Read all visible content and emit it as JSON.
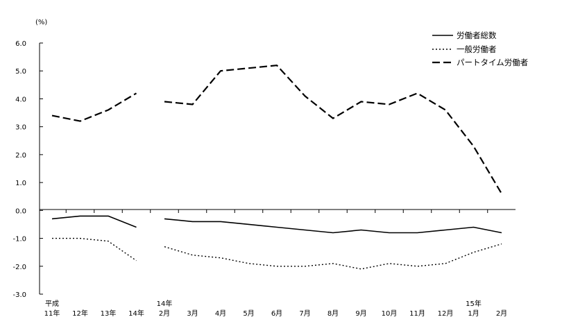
{
  "chart_data": {
    "type": "line",
    "unit_label": "(%)",
    "ylim": [
      -3.0,
      6.0
    ],
    "y_ticks": [
      "6.0",
      "5.0",
      "4.0",
      "3.0",
      "2.0",
      "1.0",
      "0.0",
      "-1.0",
      "-2.0",
      "-3.0"
    ],
    "grid": false,
    "legend_position": "top-right",
    "x_labels": [
      [
        "平成",
        "11年"
      ],
      [
        "12年"
      ],
      [
        "13年"
      ],
      [
        "14年"
      ],
      [
        "14年",
        "2月"
      ],
      [
        "3月"
      ],
      [
        "4月"
      ],
      [
        "5月"
      ],
      [
        "6月"
      ],
      [
        "7月"
      ],
      [
        "8月"
      ],
      [
        "9月"
      ],
      [
        "10月"
      ],
      [
        "11月"
      ],
      [
        "12月"
      ],
      [
        "15年",
        "1月"
      ],
      [
        "2月"
      ]
    ],
    "series": [
      {
        "name": "労働者総数",
        "style": "solid",
        "values": [
          -0.3,
          -0.2,
          -0.2,
          -0.6,
          -0.3,
          -0.4,
          -0.4,
          -0.5,
          -0.6,
          -0.7,
          -0.8,
          -0.7,
          -0.8,
          -0.8,
          -0.7,
          -0.6,
          -0.8
        ]
      },
      {
        "name": "一般労働者",
        "style": "dotted",
        "values": [
          -1.0,
          -1.0,
          -1.1,
          -1.8,
          -1.3,
          -1.6,
          -1.7,
          -1.9,
          -2.0,
          -2.0,
          -1.9,
          -2.1,
          -1.9,
          -2.0,
          -1.9,
          -1.5,
          -1.2
        ]
      },
      {
        "name": "パートタイム労働者",
        "style": "dashed",
        "values": [
          3.4,
          3.2,
          3.6,
          4.2,
          3.9,
          3.8,
          5.0,
          5.1,
          5.2,
          4.1,
          3.3,
          3.9,
          3.8,
          4.2,
          3.6,
          2.3,
          0.6
        ]
      }
    ],
    "segments": [
      [
        0,
        3
      ],
      [
        4,
        16
      ]
    ]
  }
}
